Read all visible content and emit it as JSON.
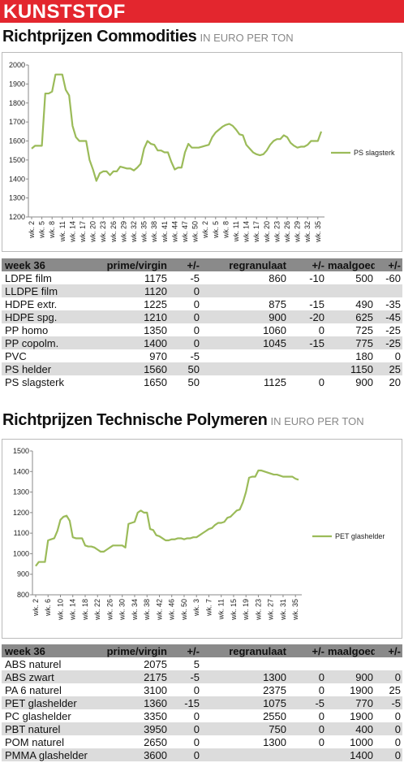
{
  "header": {
    "title": "KUNSTSTOF"
  },
  "sections": [
    {
      "title": "Richtprijzen Commodities",
      "unit": "IN EURO PER TON"
    },
    {
      "title": "Richtprijzen Technische Polymeren",
      "unit": "IN EURO PER TON"
    }
  ],
  "chart_data": [
    {
      "type": "line",
      "categories": [
        "wk. 2",
        null,
        null,
        "wk. 5",
        null,
        null,
        "wk. 8",
        null,
        null,
        "wk. 11",
        null,
        null,
        "wk. 14",
        null,
        null,
        "wk. 17",
        null,
        null,
        "wk. 20",
        null,
        null,
        "wk. 23",
        null,
        null,
        "wk. 26",
        null,
        null,
        "wk. 29",
        null,
        null,
        "wk. 32",
        null,
        null,
        "wk. 35",
        null,
        null,
        "wk. 38",
        null,
        null,
        "wk. 41",
        null,
        null,
        "wk. 44",
        null,
        null,
        "wk. 47",
        null,
        null,
        "wk. 50",
        null,
        null,
        "wk. 2",
        null,
        null,
        "wk. 5",
        null,
        null,
        "wk. 8",
        null,
        null,
        "wk. 11",
        null,
        null,
        "wk. 14",
        null,
        null,
        "wk. 17",
        null,
        null,
        "wk. 20",
        null,
        null,
        "wk. 23",
        null,
        null,
        "wk. 26",
        null,
        null,
        "wk. 29",
        null,
        null,
        "wk. 32",
        null,
        null,
        "wk. 35",
        null
      ],
      "series": [
        {
          "name": "PS slagsterk",
          "color": "#9bbb59",
          "values": [
            1560,
            1575,
            1575,
            1575,
            1850,
            1850,
            1860,
            1950,
            1950,
            1950,
            1870,
            1840,
            1680,
            1620,
            1600,
            1600,
            1600,
            1500,
            1450,
            1390,
            1430,
            1440,
            1440,
            1420,
            1440,
            1440,
            1465,
            1460,
            1455,
            1455,
            1445,
            1460,
            1480,
            1560,
            1600,
            1585,
            1580,
            1550,
            1550,
            1540,
            1540,
            1490,
            1450,
            1460,
            1460,
            1540,
            1585,
            1565,
            1565,
            1565,
            1570,
            1575,
            1580,
            1620,
            1645,
            1660,
            1675,
            1685,
            1690,
            1680,
            1660,
            1635,
            1630,
            1580,
            1560,
            1540,
            1530,
            1525,
            1530,
            1550,
            1580,
            1600,
            1610,
            1610,
            1630,
            1620,
            1590,
            1575,
            1565,
            1570,
            1570,
            1580,
            1600,
            1600,
            1600,
            1650
          ]
        }
      ],
      "ylim": [
        1200,
        2000
      ],
      "yticks": [
        1200,
        1300,
        1400,
        1500,
        1600,
        1700,
        1800,
        1900,
        2000
      ],
      "legend": "right"
    },
    {
      "type": "line",
      "categories": [
        "wk. 2",
        null,
        null,
        null,
        "wk. 6",
        null,
        null,
        null,
        "wk. 10",
        null,
        null,
        null,
        "wk. 14",
        null,
        null,
        null,
        "wk. 18",
        null,
        null,
        null,
        "wk. 22",
        null,
        null,
        null,
        "wk. 26",
        null,
        null,
        null,
        "wk. 30",
        null,
        null,
        null,
        "wk. 34",
        null,
        null,
        null,
        "wk. 38",
        null,
        null,
        null,
        "wk. 42",
        null,
        null,
        null,
        "wk. 46",
        null,
        null,
        null,
        "wk. 50",
        null,
        null,
        null,
        "wk. 3",
        null,
        null,
        null,
        "wk. 7",
        null,
        null,
        null,
        "wk. 11",
        null,
        null,
        null,
        "wk. 15",
        null,
        null,
        null,
        "wk. 19",
        null,
        null,
        null,
        "wk. 23",
        null,
        null,
        null,
        "wk. 27",
        null,
        null,
        null,
        "wk. 31",
        null,
        null,
        null,
        "wk. 35",
        null
      ],
      "series": [
        {
          "name": "PET glashelder",
          "color": "#9bbb59",
          "values": [
            940,
            960,
            960,
            960,
            1065,
            1070,
            1075,
            1110,
            1165,
            1180,
            1185,
            1160,
            1080,
            1075,
            1075,
            1075,
            1040,
            1035,
            1035,
            1030,
            1020,
            1010,
            1010,
            1020,
            1030,
            1040,
            1040,
            1040,
            1040,
            1030,
            1145,
            1150,
            1155,
            1200,
            1210,
            1200,
            1200,
            1120,
            1115,
            1090,
            1085,
            1075,
            1065,
            1065,
            1070,
            1070,
            1075,
            1075,
            1070,
            1075,
            1075,
            1080,
            1080,
            1090,
            1100,
            1110,
            1120,
            1125,
            1140,
            1150,
            1150,
            1155,
            1175,
            1180,
            1195,
            1210,
            1215,
            1250,
            1300,
            1370,
            1375,
            1375,
            1405,
            1405,
            1400,
            1395,
            1390,
            1385,
            1385,
            1380,
            1375,
            1375,
            1375,
            1375,
            1365,
            1360
          ]
        }
      ],
      "ylim": [
        800,
        1500
      ],
      "yticks": [
        800,
        900,
        1000,
        1100,
        1200,
        1300,
        1400,
        1500
      ],
      "legend": "right"
    }
  ],
  "tables": [
    {
      "columns": [
        "week 36",
        "prime/virgin",
        "+/-",
        "regranulaat",
        "+/-",
        "maalgoed",
        "+/-"
      ],
      "rows": [
        [
          "LDPE film",
          1175,
          -5,
          860,
          -10,
          500,
          -60
        ],
        [
          "LLDPE film",
          1120,
          0,
          null,
          null,
          null,
          null
        ],
        [
          "HDPE extr.",
          1225,
          0,
          875,
          -15,
          490,
          -35
        ],
        [
          "HDPE spg.",
          1210,
          0,
          900,
          -20,
          625,
          -45
        ],
        [
          "PP homo",
          1350,
          0,
          1060,
          0,
          725,
          -25
        ],
        [
          "PP copolm.",
          1400,
          0,
          1045,
          -15,
          775,
          -25
        ],
        [
          "PVC",
          970,
          -5,
          null,
          null,
          180,
          0
        ],
        [
          "PS helder",
          1560,
          50,
          null,
          null,
          1150,
          25
        ],
        [
          "PS slagsterk",
          1650,
          50,
          1125,
          0,
          900,
          20
        ]
      ]
    },
    {
      "columns": [
        "week 36",
        "prime/virgin",
        "+/-",
        "regranulaat",
        "+/-",
        "maalgoed",
        "+/-"
      ],
      "rows": [
        [
          "ABS naturel",
          2075,
          5,
          null,
          null,
          null,
          null
        ],
        [
          "ABS zwart",
          2175,
          -5,
          1300,
          0,
          900,
          0
        ],
        [
          "PA 6 naturel",
          3100,
          0,
          2375,
          0,
          1900,
          25
        ],
        [
          "PET glashelder",
          1360,
          -15,
          1075,
          -5,
          770,
          -5
        ],
        [
          "PC glashelder",
          3350,
          0,
          2550,
          0,
          1900,
          0
        ],
        [
          "PBT naturel",
          3950,
          0,
          750,
          0,
          400,
          0
        ],
        [
          "POM naturel",
          2650,
          0,
          1300,
          0,
          1000,
          0
        ],
        [
          "PMMA glashelder",
          3600,
          0,
          null,
          null,
          1400,
          0
        ]
      ]
    }
  ]
}
